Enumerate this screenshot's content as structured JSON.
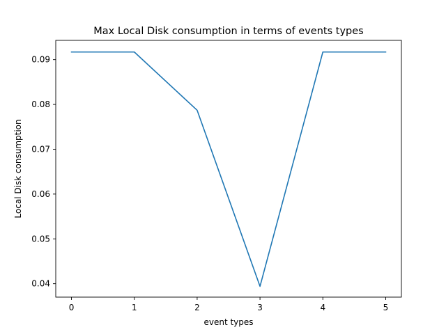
{
  "chart_data": {
    "type": "line",
    "title": "Max Local Disk consumption in terms of events types",
    "xlabel": "event types",
    "ylabel": "Local Disk consumption",
    "x": [
      0,
      1,
      2,
      3,
      4,
      5
    ],
    "xticks": [
      "0",
      "1",
      "2",
      "3",
      "4",
      "5"
    ],
    "yticks": [
      "0.04",
      "0.05",
      "0.06",
      "0.07",
      "0.08",
      "0.09"
    ],
    "ytick_values": [
      0.04,
      0.05,
      0.06,
      0.07,
      0.08,
      0.09
    ],
    "xlim": [
      -0.25,
      5.25
    ],
    "ylim": [
      0.037,
      0.0943
    ],
    "grid": false,
    "series": [
      {
        "values": [
          0.0917,
          0.0917,
          0.0787,
          0.0394,
          0.0917,
          0.0917
        ],
        "color": "#1f77b4"
      }
    ]
  }
}
